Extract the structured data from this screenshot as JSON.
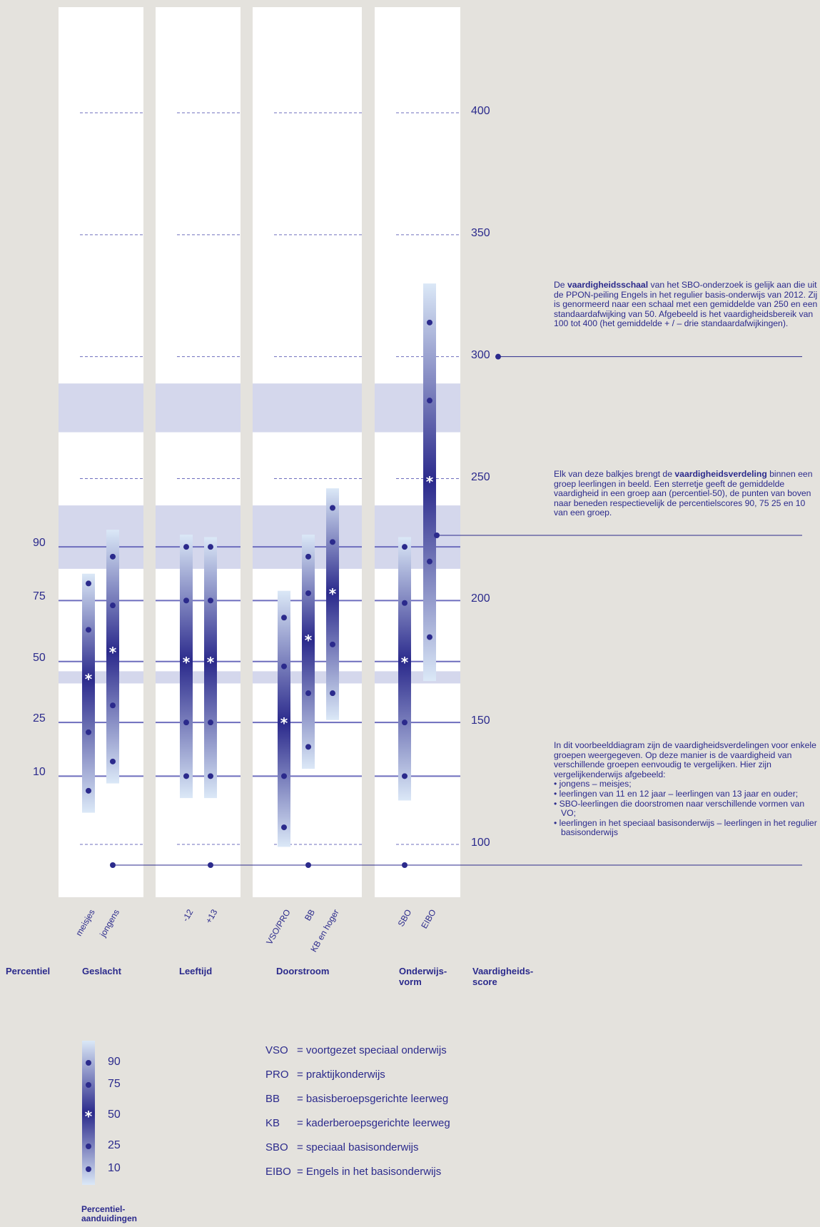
{
  "chart_data": {
    "type": "percentile-distribution",
    "y_axis": {
      "title": "Vaardigheids-\nscore",
      "ticks": [
        100,
        150,
        200,
        250,
        300,
        350,
        400
      ],
      "ylim": [
        100,
        400
      ]
    },
    "percentile_axis": {
      "title": "Percentiel",
      "ticks": [
        {
          "label": "90",
          "score": 222
        },
        {
          "label": "75",
          "score": 200
        },
        {
          "label": "50",
          "score": 175
        },
        {
          "label": "25",
          "score": 150
        },
        {
          "label": "10",
          "score": 128
        }
      ]
    },
    "panels": [
      {
        "title": "Geslacht",
        "bars": [
          {
            "label": "meisjes",
            "p10": 122,
            "p25": 146,
            "p50": 168,
            "p75": 188,
            "p90": 207,
            "top": 211,
            "bottom": 113
          },
          {
            "label": "jongens",
            "p10": 134,
            "p25": 157,
            "p50": 179,
            "p75": 198,
            "p90": 218,
            "top": 229,
            "bottom": 125
          }
        ]
      },
      {
        "title": "Leeftijd",
        "bars": [
          {
            "label": "-12",
            "p10": 128,
            "p25": 150,
            "p50": 175,
            "p75": 200,
            "p90": 222,
            "top": 227,
            "bottom": 119
          },
          {
            "label": "+13",
            "p10": 128,
            "p25": 150,
            "p50": 175,
            "p75": 200,
            "p90": 222,
            "top": 226,
            "bottom": 119
          }
        ]
      },
      {
        "title": "Doorstroom",
        "bars": [
          {
            "label": "VSO/PRO",
            "p10": 107,
            "p25": 128,
            "p50": 150,
            "p75": 173,
            "p90": 193,
            "top": 204,
            "bottom": 99
          },
          {
            "label": "BB",
            "p10": 140,
            "p25": 162,
            "p50": 184,
            "p75": 203,
            "p90": 218,
            "top": 227,
            "bottom": 131
          },
          {
            "label": "KB en hoger",
            "p10": 162,
            "p25": 182,
            "p50": 203,
            "p75": 224,
            "p90": 238,
            "top": 246,
            "bottom": 151
          }
        ]
      },
      {
        "title": "Onderwijs-\nvorm",
        "bars": [
          {
            "label": "SBO",
            "p10": 128,
            "p25": 150,
            "p50": 175,
            "p75": 199,
            "p90": 222,
            "top": 226,
            "bottom": 118
          },
          {
            "label": "EIBO",
            "p10": 185,
            "p25": 216,
            "p50": 249,
            "p75": 282,
            "p90": 314,
            "top": 330,
            "bottom": 167
          }
        ]
      }
    ],
    "highlight_bands": [
      [
        269,
        289
      ],
      [
        213,
        239
      ],
      [
        166,
        171
      ]
    ],
    "colors": {
      "background": "#e4e2dd",
      "panel": "#ffffff",
      "band": "#d4d7ec",
      "dark": "#2b2a8c",
      "light": "#dbe8f7",
      "grid": "#6d6dbd"
    }
  },
  "annotations": {
    "scale": {
      "pre": "De ",
      "bold": "vaardigheidsschaal",
      "post": " van het SBO-onderzoek is gelijk aan die uit de PPON-peiling Engels in het regulier basis-onderwijs van 2012. Zij is genormeerd naar een schaal met een gemiddelde van 250 en een standaardafwijking van 50. Afgebeeld is het vaardigheidsbereik van 100 tot 400 (het gemiddelde + / – drie standaardafwijkingen)."
    },
    "bars": {
      "pre": "Elk van deze balkjes brengt de ",
      "bold": "vaardigheidsverdeling",
      "post": " binnen een groep leerlingen in beeld. Een sterretje geeft de gemiddelde vaardigheid in een groep aan (percentiel-50), de punten van boven naar beneden respectievelijk de percentielscores 90, 75 25 en 10 van een groep."
    },
    "example": {
      "intro": "In dit voorbeelddiagram zijn de vaardigheidsverdelingen voor enkele groepen weergegeven. Op deze manier is de vaardigheid van verschillende groepen eenvoudig te vergelijken. Hier zijn vergelijkenderwijs afgebeeld:",
      "items": [
        "• jongens – meisjes;",
        "• leerlingen van 11 en 12 jaar – leerlingen van 13 jaar en ouder;",
        "• SBO-leerlingen die doorstromen naar verschillende vormen van VO;",
        "• leerlingen in het speciaal basisonderwijs – leerlingen in het regulier basisonderwijs"
      ]
    }
  },
  "legend": {
    "title": "Percentiel-\naanduidingen",
    "percentiles": [
      "90",
      "75",
      "50",
      "25",
      "10"
    ],
    "abbreviations": [
      {
        "abbr": "VSO",
        "text": "= voortgezet speciaal onderwijs"
      },
      {
        "abbr": "PRO",
        "text": "= praktijkonderwijs"
      },
      {
        "abbr": "BB",
        "text": "= basisberoepsgerichte leerweg"
      },
      {
        "abbr": "KB",
        "text": "= kaderberoepsgerichte leerweg"
      },
      {
        "abbr": "SBO",
        "text": "= speciaal basisonderwijs"
      },
      {
        "abbr": "EIBO",
        "text": "= Engels in het basisonderwijs"
      }
    ]
  }
}
